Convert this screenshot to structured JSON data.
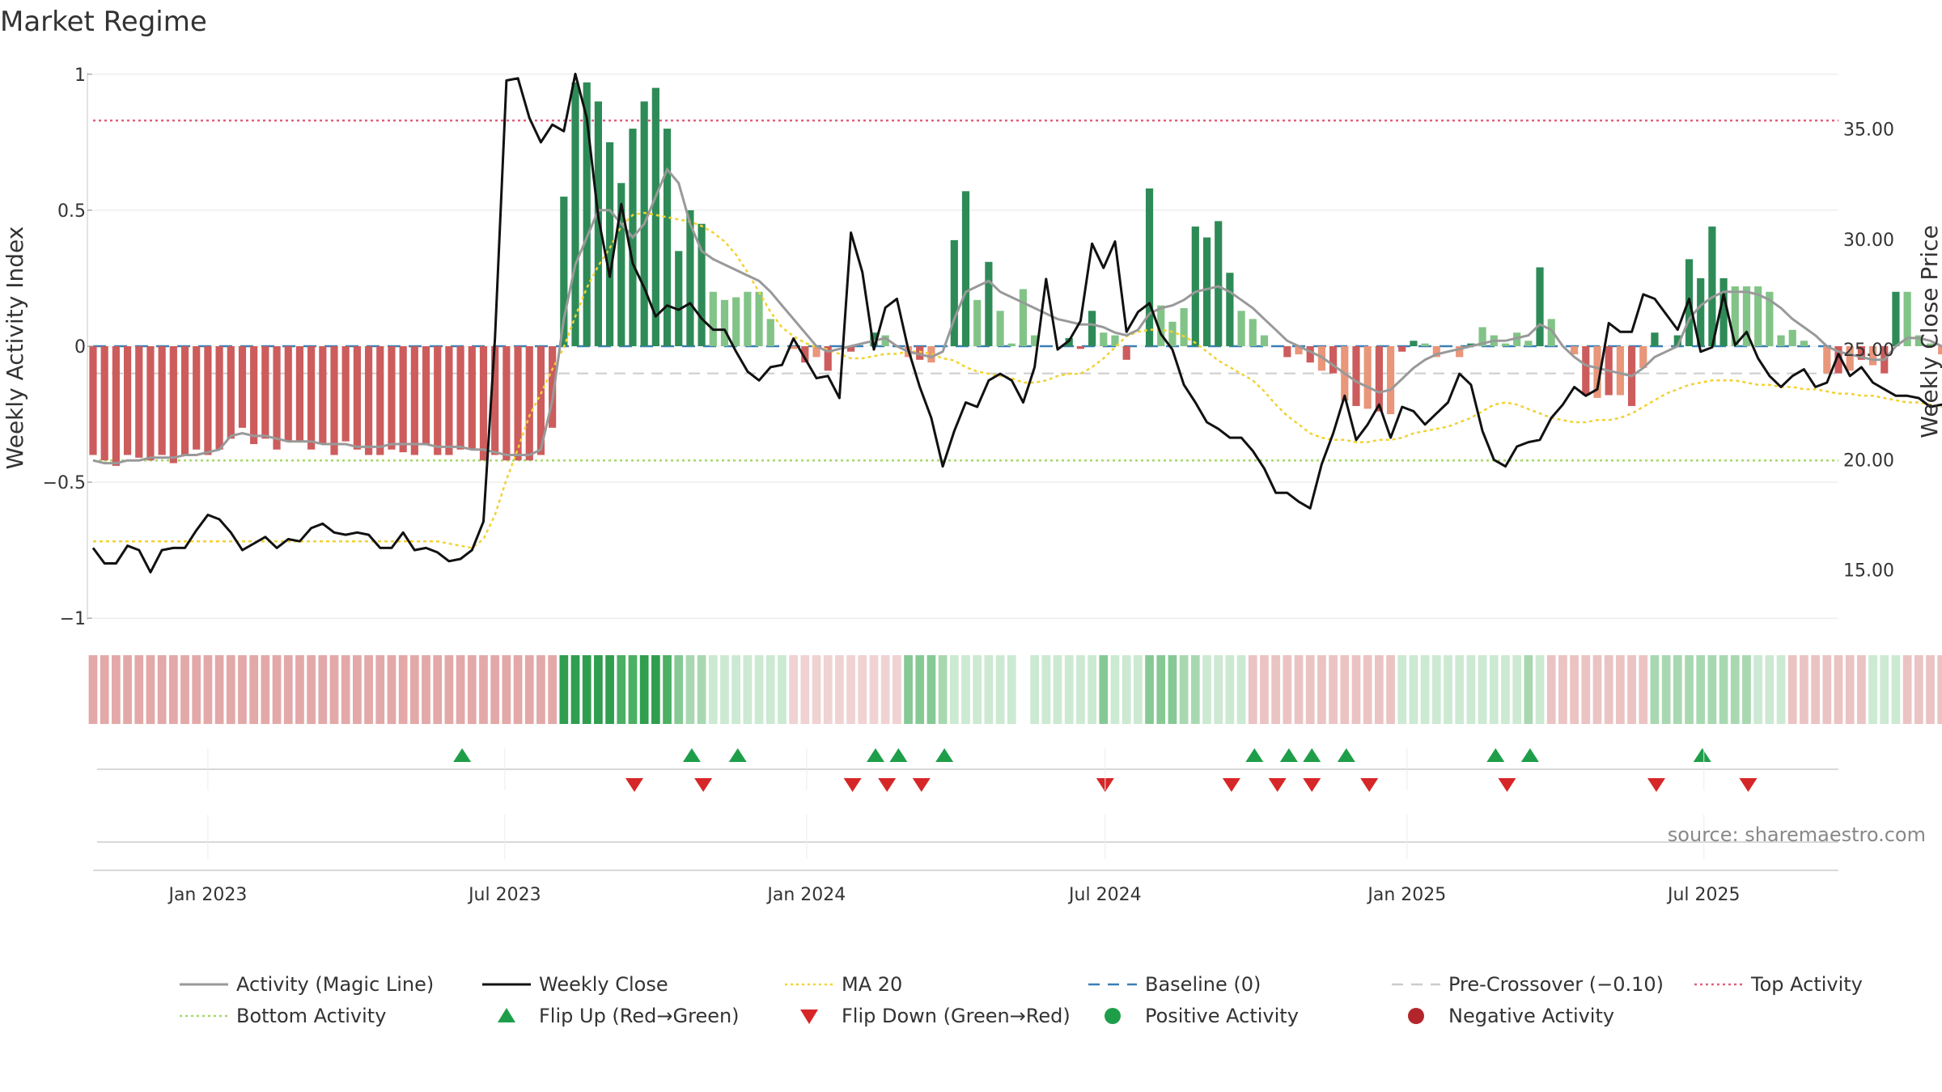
{
  "chart_data": {
    "type": "bar",
    "title": "Market Regime",
    "ylabel_left": "Weekly Activity Index",
    "ylabel_right": "Weekly Close Price",
    "ylim_left": [
      -1.05,
      1.05
    ],
    "ylim_right": [
      12.2,
      38.1
    ],
    "yticks_left": [
      {
        "v": 1,
        "t": "1"
      },
      {
        "v": 0.5,
        "t": "0.5"
      },
      {
        "v": 0,
        "t": "0"
      },
      {
        "v": -0.5,
        "t": "−0.5"
      },
      {
        "v": -1,
        "t": "−1"
      }
    ],
    "yticks_right": [
      {
        "v": 35,
        "t": "35.00"
      },
      {
        "v": 30,
        "t": "30.00"
      },
      {
        "v": 25,
        "t": "25.00"
      },
      {
        "v": 20,
        "t": "20.00"
      },
      {
        "v": 15,
        "t": "15.00"
      }
    ],
    "x_start": "2022-10-23",
    "x_end": "2025-09-21",
    "x_ticks": [
      {
        "date": "2023-01-01",
        "label": "Jan 2023"
      },
      {
        "date": "2023-07-01",
        "label": "Jul 2023"
      },
      {
        "date": "2024-01-01",
        "label": "Jan 2024"
      },
      {
        "date": "2024-07-01",
        "label": "Jul 2024"
      },
      {
        "date": "2025-01-01",
        "label": "Jan 2025"
      },
      {
        "date": "2025-07-01",
        "label": "Jul 2025"
      }
    ],
    "reference_lines": {
      "top_activity": 0.83,
      "bottom_activity": -0.42,
      "pre_crossover": -0.1,
      "baseline": 0
    },
    "activity": [
      -0.4,
      -0.42,
      -0.44,
      -0.4,
      -0.41,
      -0.42,
      -0.4,
      -0.43,
      -0.4,
      -0.38,
      -0.4,
      -0.38,
      -0.34,
      -0.3,
      -0.36,
      -0.34,
      -0.38,
      -0.35,
      -0.35,
      -0.38,
      -0.36,
      -0.4,
      -0.35,
      -0.38,
      -0.4,
      -0.4,
      -0.38,
      -0.39,
      -0.4,
      -0.36,
      -0.4,
      -0.4,
      -0.38,
      -0.38,
      -0.42,
      -0.4,
      -0.42,
      -0.42,
      -0.42,
      -0.4,
      -0.3,
      0.55,
      0.97,
      0.97,
      0.9,
      0.75,
      0.6,
      0.8,
      0.9,
      0.95,
      0.8,
      0.35,
      0.5,
      0.45,
      0.2,
      0.17,
      0.18,
      0.2,
      0.2,
      0.1,
      0,
      -0.01,
      -0.06,
      -0.04,
      -0.09,
      0,
      -0.02,
      0,
      0.05,
      0.04,
      0,
      -0.04,
      -0.05,
      -0.06,
      0,
      0.39,
      0.57,
      0.17,
      0.31,
      0.13,
      0.01,
      0.21,
      0.04,
      0,
      0,
      0.03,
      -0.01,
      0.13,
      0.05,
      0.04,
      -0.05,
      0,
      0.58,
      0.15,
      0.09,
      0.14,
      0.44,
      0.4,
      0.46,
      0.27,
      0.13,
      0.1,
      0.04,
      0,
      -0.04,
      -0.03,
      -0.06,
      -0.09,
      -0.1,
      -0.2,
      -0.22,
      -0.23,
      -0.24,
      -0.25,
      -0.02,
      0.02,
      0.01,
      -0.04,
      0,
      -0.04,
      0.01,
      0.07,
      0.04,
      0.01,
      0.05,
      0.02,
      0.29,
      0.1,
      0,
      -0.03,
      -0.18,
      -0.19,
      -0.18,
      -0.18,
      -0.22,
      -0.08,
      0.05,
      0,
      0.04,
      0.32,
      0.25,
      0.44,
      0.25,
      0.22,
      0.22,
      0.22,
      0.2,
      0.04,
      0.06,
      0.02,
      0,
      -0.1,
      -0.1,
      -0.09,
      -0.05,
      -0.07,
      -0.1,
      0.2,
      0.2,
      0.04,
      0.01,
      -0.03,
      -0.06,
      -0.08,
      -0.13,
      -0.08,
      -0.1,
      -0.17,
      -0.15,
      -0.16
    ],
    "magic_line": [
      -0.42,
      -0.43,
      -0.43,
      -0.42,
      -0.42,
      -0.41,
      -0.41,
      -0.41,
      -0.4,
      -0.4,
      -0.39,
      -0.38,
      -0.33,
      -0.32,
      -0.33,
      -0.33,
      -0.34,
      -0.35,
      -0.35,
      -0.35,
      -0.36,
      -0.36,
      -0.36,
      -0.37,
      -0.37,
      -0.37,
      -0.36,
      -0.36,
      -0.36,
      -0.36,
      -0.37,
      -0.37,
      -0.37,
      -0.38,
      -0.38,
      -0.39,
      -0.4,
      -0.4,
      -0.4,
      -0.38,
      -0.2,
      0.1,
      0.3,
      0.4,
      0.5,
      0.5,
      0.45,
      0.4,
      0.45,
      0.55,
      0.65,
      0.6,
      0.45,
      0.35,
      0.32,
      0.3,
      0.28,
      0.26,
      0.24,
      0.2,
      0.15,
      0.1,
      0.05,
      0,
      -0.02,
      -0.01,
      0,
      0.01,
      0.02,
      0.03,
      0,
      -0.02,
      -0.03,
      -0.04,
      -0.02,
      0.1,
      0.2,
      0.22,
      0.24,
      0.2,
      0.18,
      0.16,
      0.14,
      0.12,
      0.1,
      0.09,
      0.08,
      0.08,
      0.07,
      0.05,
      0.04,
      0.06,
      0.12,
      0.14,
      0.15,
      0.17,
      0.2,
      0.21,
      0.22,
      0.2,
      0.17,
      0.14,
      0.1,
      0.06,
      0.02,
      0,
      -0.02,
      -0.04,
      -0.07,
      -0.1,
      -0.13,
      -0.15,
      -0.17,
      -0.16,
      -0.12,
      -0.08,
      -0.05,
      -0.03,
      -0.02,
      -0.01,
      0,
      0.01,
      0.02,
      0.02,
      0.03,
      0.04,
      0.08,
      0.06,
      0,
      -0.04,
      -0.07,
      -0.08,
      -0.09,
      -0.1,
      -0.11,
      -0.08,
      -0.04,
      -0.02,
      0,
      0.1,
      0.15,
      0.18,
      0.2,
      0.2,
      0.2,
      0.19,
      0.17,
      0.14,
      0.1,
      0.07,
      0.04,
      0,
      -0.02,
      -0.03,
      -0.04,
      -0.05,
      -0.05,
      0,
      0.03,
      0.03,
      0.02,
      0,
      -0.02,
      -0.03,
      -0.05,
      -0.05,
      -0.06,
      -0.08,
      -0.1,
      -0.11
    ],
    "weekly_close": [
      16.0,
      15.3,
      15.3,
      16.1,
      15.9,
      14.9,
      15.9,
      16.0,
      16.0,
      16.8,
      17.5,
      17.3,
      16.7,
      15.9,
      16.2,
      16.5,
      16.0,
      16.4,
      16.3,
      16.9,
      17.1,
      16.7,
      16.6,
      16.7,
      16.6,
      16.0,
      16.0,
      16.7,
      15.9,
      16.0,
      15.8,
      15.4,
      15.5,
      15.9,
      17.2,
      25.5,
      37.2,
      37.3,
      35.5,
      34.4,
      35.2,
      34.9,
      37.5,
      35.5,
      31.0,
      28.3,
      31.6,
      28.9,
      27.8,
      26.5,
      27.0,
      26.8,
      27.1,
      26.4,
      25.9,
      25.9,
      24.9,
      24.0,
      23.6,
      24.2,
      24.3,
      25.5,
      24.6,
      23.7,
      23.8,
      22.8,
      30.3,
      28.5,
      25.0,
      26.9,
      27.3,
      25.0,
      23.3,
      21.9,
      19.7,
      21.3,
      22.6,
      22.4,
      23.6,
      23.9,
      23.6,
      22.6,
      24.2,
      28.2,
      25.0,
      25.4,
      26.3,
      29.8,
      28.7,
      29.9,
      25.8,
      26.7,
      27.1,
      25.7,
      25.0,
      23.4,
      22.6,
      21.7,
      21.4,
      21.0,
      21.0,
      20.4,
      19.6,
      18.5,
      18.5,
      18.1,
      17.8,
      19.8,
      21.2,
      22.9,
      20.9,
      21.6,
      22.5,
      21.0,
      22.4,
      22.2,
      21.6,
      22.1,
      22.6,
      23.9,
      23.4,
      21.3,
      20.0,
      19.7,
      20.6,
      20.8,
      20.9,
      21.9,
      22.5,
      23.3,
      22.9,
      23.2,
      26.2,
      25.8,
      25.8,
      27.5,
      27.3,
      26.6,
      25.9,
      27.3,
      24.9,
      25.1,
      27.5,
      25.2,
      25.8,
      24.6,
      23.8,
      23.3,
      23.8,
      24.1,
      23.3,
      23.5,
      24.8,
      23.8,
      24.2,
      23.5,
      23.2,
      22.9,
      22.9,
      22.8,
      22.4,
      22.5,
      22.4,
      22.0
    ],
    "ma20": [
      16.3,
      16.3,
      16.3,
      16.3,
      16.3,
      16.3,
      16.3,
      16.3,
      16.3,
      16.3,
      16.3,
      16.3,
      16.3,
      16.3,
      16.3,
      16.3,
      16.3,
      16.3,
      16.3,
      16.3,
      16.3,
      16.3,
      16.3,
      16.3,
      16.3,
      16.3,
      16.3,
      16.3,
      16.3,
      16.3,
      16.3,
      16.2,
      16.1,
      16.0,
      16.4,
      17.5,
      19.1,
      20.5,
      22.0,
      23.0,
      24.1,
      25.1,
      26.5,
      27.8,
      28.8,
      29.6,
      30.6,
      31.1,
      31.2,
      31.1,
      31.0,
      30.9,
      30.8,
      30.6,
      30.3,
      29.9,
      29.3,
      28.5,
      27.6,
      26.7,
      26.0,
      25.6,
      25.3,
      25.1,
      25.0,
      24.8,
      24.6,
      24.6,
      24.7,
      24.8,
      24.8,
      24.9,
      24.9,
      24.8,
      24.6,
      24.5,
      24.2,
      24.0,
      23.9,
      23.8,
      23.7,
      23.5,
      23.5,
      23.6,
      23.8,
      23.9,
      23.9,
      24.2,
      24.6,
      25.1,
      25.6,
      25.8,
      25.9,
      25.9,
      25.8,
      25.6,
      25.3,
      24.9,
      24.5,
      24.2,
      23.9,
      23.6,
      23.1,
      22.5,
      22.0,
      21.6,
      21.2,
      21.0,
      20.9,
      20.9,
      20.8,
      20.8,
      20.9,
      20.9,
      21.0,
      21.2,
      21.3,
      21.4,
      21.5,
      21.7,
      21.9,
      22.2,
      22.5,
      22.6,
      22.5,
      22.3,
      22.1,
      21.9,
      21.8,
      21.7,
      21.7,
      21.8,
      21.8,
      21.9,
      22.1,
      22.4,
      22.7,
      23.0,
      23.2,
      23.4,
      23.5,
      23.6,
      23.6,
      23.6,
      23.5,
      23.4,
      23.4,
      23.3,
      23.3,
      23.2,
      23.2,
      23.1,
      23.0,
      23.0,
      22.9,
      22.9,
      22.8,
      22.7,
      22.6,
      22.6,
      22.5,
      22.4,
      22.3,
      22.2
    ],
    "regime_strip": [
      -0.4,
      -0.4,
      -0.4,
      -0.4,
      -0.4,
      -0.4,
      -0.4,
      -0.4,
      -0.4,
      -0.4,
      -0.4,
      -0.4,
      -0.4,
      -0.4,
      -0.4,
      -0.4,
      -0.4,
      -0.4,
      -0.4,
      -0.4,
      -0.4,
      -0.4,
      -0.4,
      -0.4,
      -0.4,
      -0.4,
      -0.4,
      -0.4,
      -0.4,
      -0.4,
      -0.4,
      -0.4,
      -0.4,
      -0.4,
      -0.4,
      -0.4,
      -0.4,
      -0.4,
      -0.4,
      -0.4,
      -0.4,
      0.85,
      0.85,
      0.9,
      0.9,
      0.8,
      0.65,
      0.7,
      0.75,
      0.8,
      0.7,
      0.4,
      0.35,
      0.3,
      0.25,
      0.25,
      0.22,
      0.2,
      0.18,
      0.15,
      0.1,
      -0.1,
      -0.1,
      -0.1,
      -0.08,
      -0.1,
      -0.1,
      -0.08,
      -0.1,
      -0.08,
      -0.1,
      0.5,
      0.55,
      0.45,
      0.3,
      0.25,
      0.25,
      0.25,
      0.22,
      0.2,
      0.15,
      0,
      0.12,
      0.15,
      0.15,
      0.12,
      0.12,
      0.15,
      0.45,
      0.25,
      0.2,
      0.2,
      0.5,
      0.5,
      0.45,
      0.35,
      0.3,
      0.25,
      0.2,
      0.18,
      0.15,
      -0.2,
      -0.2,
      -0.2,
      -0.2,
      -0.2,
      -0.22,
      -0.25,
      -0.25,
      -0.25,
      -0.25,
      -0.25,
      -0.25,
      -0.25,
      0.15,
      0.18,
      0.18,
      0.15,
      0.15,
      0.15,
      0.2,
      0.2,
      0.15,
      0.15,
      0.2,
      0.35,
      0.15,
      -0.2,
      -0.22,
      -0.25,
      -0.25,
      -0.25,
      -0.25,
      -0.25,
      -0.22,
      -0.2,
      0.3,
      0.3,
      0.35,
      0.35,
      0.35,
      0.3,
      0.3,
      0.3,
      0.3,
      0.25,
      0.2,
      0.2,
      -0.2,
      -0.2,
      -0.2,
      -0.2,
      -0.2,
      -0.2,
      -0.2,
      0.25,
      0.25,
      0.2,
      -0.2,
      -0.2,
      -0.2,
      -0.2,
      -0.2,
      -0.2,
      -0.2,
      -0.2,
      -0.2,
      -0.2
    ],
    "flip_up_dates": [
      "2023-06-05",
      "2023-10-23",
      "2023-11-20",
      "2024-02-12",
      "2024-02-26",
      "2024-03-25",
      "2024-09-30",
      "2024-10-21",
      "2024-11-04",
      "2024-11-25",
      "2025-02-24",
      "2025-03-17",
      "2025-06-30"
    ],
    "flip_down_dates": [
      "2023-09-18",
      "2023-10-30",
      "2024-01-29",
      "2024-02-19",
      "2024-03-11",
      "2024-07-01",
      "2024-09-16",
      "2024-10-14",
      "2024-11-04",
      "2024-12-09",
      "2025-03-03",
      "2025-06-02",
      "2025-07-28"
    ],
    "source": "source: sharemaestro.com",
    "legend": [
      {
        "label": "Activity (Magic Line)",
        "symbol": "line",
        "color": "#999999"
      },
      {
        "label": "Weekly Close",
        "symbol": "line",
        "color": "#111111"
      },
      {
        "label": "MA 20",
        "symbol": "dotted",
        "color": "#f2d232"
      },
      {
        "label": "Baseline (0)",
        "symbol": "dashed",
        "color": "#3b7fb6"
      },
      {
        "label": "Pre-Crossover (−0.10)",
        "symbol": "dashed",
        "color": "#cccccc"
      },
      {
        "label": "Top Activity",
        "symbol": "dotted",
        "color": "#e0607e"
      },
      {
        "label": "Bottom Activity",
        "symbol": "dotted",
        "color": "#a6d96a"
      },
      {
        "label": "Flip Up (Red→Green)",
        "symbol": "triangle-up",
        "color": "#1f9e4a"
      },
      {
        "label": "Flip Down (Green→Red)",
        "symbol": "triangle-down",
        "color": "#d62728"
      },
      {
        "label": "Positive Activity",
        "symbol": "circle",
        "color": "#1f9e4a"
      },
      {
        "label": "Negative Activity",
        "symbol": "circle",
        "color": "#b2262b"
      }
    ],
    "colors": {
      "pos_strong": "#2e8b57",
      "pos_weak": "#82c487",
      "neg_strong": "#cd5c5c",
      "neg_weak": "#e9967a",
      "grid": "#e6e6e6"
    }
  }
}
